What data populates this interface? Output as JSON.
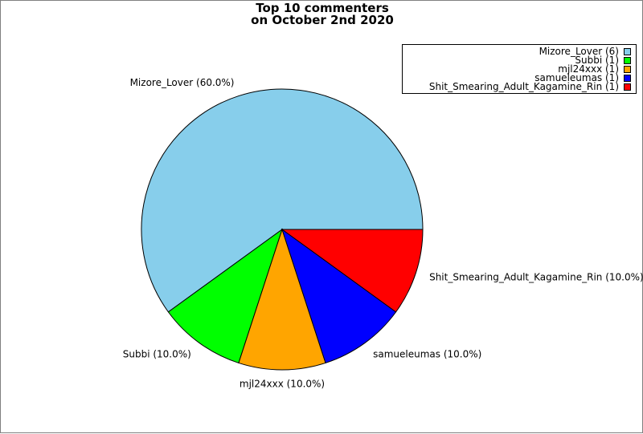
{
  "chart_data": {
    "type": "pie",
    "title_line1": "Top 10 commenters",
    "title_line2": "on October 2nd 2020",
    "slices": [
      {
        "label": "Mizore_Lover",
        "value": 6,
        "percent_label": "Mizore_Lover (60.0%)",
        "legend_label": "Mizore_Lover (6)",
        "color": "#87CEEB"
      },
      {
        "label": "Subbi",
        "value": 1,
        "percent_label": "Subbi (10.0%)",
        "legend_label": "Subbi (1)",
        "color": "#00FF00"
      },
      {
        "label": "mjl24xxx",
        "value": 1,
        "percent_label": "mjl24xxx (10.0%)",
        "legend_label": "mjl24xxx (1)",
        "color": "#FFA500"
      },
      {
        "label": "samueleumas",
        "value": 1,
        "percent_label": "samueleumas (10.0%)",
        "legend_label": "samueleumas (1)",
        "color": "#0000FF"
      },
      {
        "label": "Shit_Smearing_Adult_Kagamine_Rin",
        "value": 1,
        "percent_label": "Shit_Smearing_Adult_Kagamine_Rin (10.0%)",
        "legend_label": "Shit_Smearing_Adult_Kagamine_Rin (1)",
        "color": "#FF0000"
      }
    ],
    "legend_position": "top-right"
  }
}
